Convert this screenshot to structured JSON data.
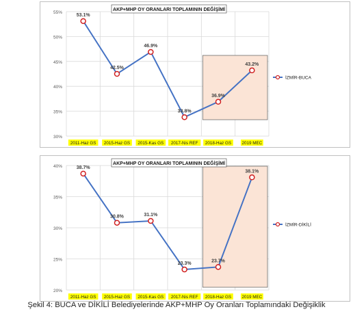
{
  "caption": "Şekil 4: BUCA ve DİKİLİ Belediyelerinde AKP+MHP Oy Oranları Toplamındaki Değişiklik",
  "colors": {
    "line": "#4472c4",
    "marker_stroke": "#d11f1f",
    "highlight_fill": "#fbe4d6",
    "highlight_stroke": "#6b6b6b",
    "tick_highlight": "#ffff00",
    "grid": "#d9d9d9"
  },
  "chart_data": [
    {
      "type": "line",
      "title": "AKP+MHP OY ORANLARI TOPLAMININ DEĞİŞİMİ",
      "categories": [
        "2011-Haz GS",
        "2015-Haz GS",
        "2015-Kas GS",
        "2017-Nis REF",
        "2018-Haz GS",
        "2019 MEC"
      ],
      "series": [
        {
          "name": "İZMİR-BUCA",
          "values": [
            53.1,
            42.5,
            46.9,
            33.8,
            36.9,
            43.2
          ]
        }
      ],
      "data_labels": [
        "53.1%",
        "42.5%",
        "46.9%",
        "33.8%",
        "36.9%",
        "43.2%"
      ],
      "ylim": [
        30,
        55
      ],
      "yticks": [
        30,
        35,
        40,
        45,
        50,
        55
      ],
      "ytick_labels": [
        "30%",
        "35%",
        "40%",
        "45%",
        "50%",
        "55%"
      ],
      "grid": true,
      "legend": "right",
      "highlight_range": [
        "2018-Haz GS",
        "2019 MEC"
      ]
    },
    {
      "type": "line",
      "title": "AKP+MHP OY ORANLARI TOPLAMININ DEĞİŞİMİ",
      "categories": [
        "2011-Haz GS",
        "2015-Haz GS",
        "2015-Kas GS",
        "2017-Nis REF",
        "2018-Haz GS",
        "2019 MEC"
      ],
      "series": [
        {
          "name": "İZMİR-DİKİLİ",
          "values": [
            38.7,
            30.8,
            31.1,
            23.3,
            23.7,
            38.1
          ]
        }
      ],
      "data_labels": [
        "38.7%",
        "30.8%",
        "31.1%",
        "23.3%",
        "23.7%",
        "38.1%"
      ],
      "ylim": [
        20,
        40
      ],
      "yticks": [
        20,
        25,
        30,
        35,
        40
      ],
      "ytick_labels": [
        "20%",
        "25%",
        "30%",
        "35%",
        "40%"
      ],
      "grid": true,
      "legend": "right",
      "highlight_range": [
        "2018-Haz GS",
        "2019 MEC"
      ]
    }
  ]
}
